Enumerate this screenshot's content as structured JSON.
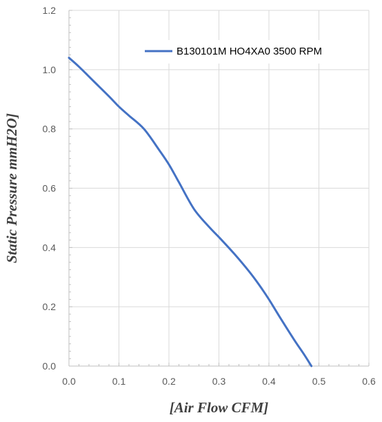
{
  "chart_data": {
    "type": "line",
    "title": "",
    "xlabel": "[Air Flow CFM]",
    "ylabel": "Static Pressure mmH2O]",
    "xlim": [
      0.0,
      0.6
    ],
    "ylim": [
      0.0,
      1.2
    ],
    "x_ticks": [
      "0.0",
      "0.1",
      "0.2",
      "0.3",
      "0.4",
      "0.5",
      "0.6"
    ],
    "y_ticks": [
      "0.0",
      "0.2",
      "0.4",
      "0.6",
      "0.8",
      "1.0",
      "1.2"
    ],
    "grid": true,
    "legend_position": "top-right",
    "series": [
      {
        "name": "B130101M HO4XA0 3500 RPM",
        "color": "#4472C4",
        "x": [
          0.0,
          0.02,
          0.05,
          0.08,
          0.1,
          0.12,
          0.15,
          0.18,
          0.2,
          0.22,
          0.25,
          0.28,
          0.3,
          0.33,
          0.36,
          0.38,
          0.4,
          0.42,
          0.45,
          0.47,
          0.485
        ],
        "y": [
          1.04,
          1.01,
          0.96,
          0.91,
          0.875,
          0.845,
          0.8,
          0.73,
          0.68,
          0.62,
          0.53,
          0.47,
          0.435,
          0.38,
          0.32,
          0.275,
          0.225,
          0.17,
          0.09,
          0.04,
          0.0
        ]
      }
    ]
  }
}
